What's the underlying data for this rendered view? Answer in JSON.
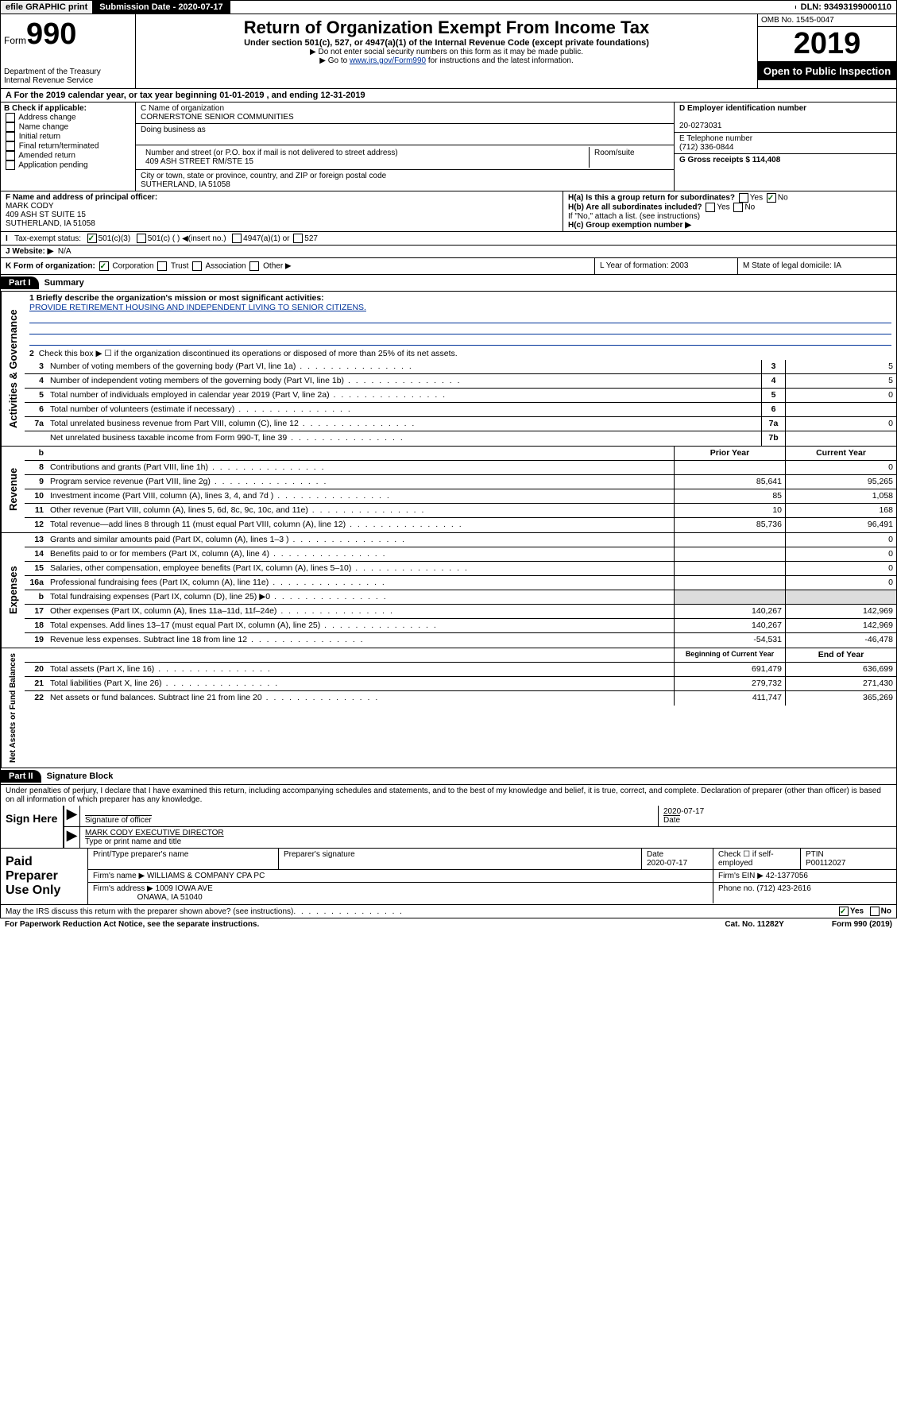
{
  "topbar": {
    "efile": "efile GRAPHIC print",
    "sub_label": "Submission Date - 2020-07-17",
    "dln": "DLN: 93493199000110"
  },
  "header": {
    "form_prefix": "Form",
    "form_number": "990",
    "dept": "Department of the Treasury\nInternal Revenue Service",
    "title": "Return of Organization Exempt From Income Tax",
    "subtitle": "Under section 501(c), 527, or 4947(a)(1) of the Internal Revenue Code (except private foundations)",
    "instr1": "▶ Do not enter social security numbers on this form as it may be made public.",
    "instr2_pre": "▶ Go to ",
    "instr2_link": "www.irs.gov/Form990",
    "instr2_post": " for instructions and the latest information.",
    "omb": "OMB No. 1545-0047",
    "year": "2019",
    "open": "Open to Public Inspection"
  },
  "lineA": "A For the 2019 calendar year, or tax year beginning 01-01-2019   , and ending 12-31-2019",
  "colB": {
    "label": "B Check if applicable:",
    "opts": [
      "Address change",
      "Name change",
      "Initial return",
      "Final return/terminated",
      "Amended return",
      "Application pending"
    ]
  },
  "colC": {
    "name_label": "C Name of organization",
    "name": "CORNERSTONE SENIOR COMMUNITIES",
    "dba_label": "Doing business as",
    "addr_label": "Number and street (or P.O. box if mail is not delivered to street address)",
    "room_label": "Room/suite",
    "addr": "409 ASH STREET RM/STE 15",
    "city_label": "City or town, state or province, country, and ZIP or foreign postal code",
    "city": "SUTHERLAND, IA  51058"
  },
  "colD": {
    "ein_label": "D Employer identification number",
    "ein": "20-0273031",
    "phone_label": "E Telephone number",
    "phone": "(712) 336-0844",
    "gross_label": "G Gross receipts $ 114,408"
  },
  "rowF": {
    "label": "F  Name and address of principal officer:",
    "name": "MARK CODY",
    "addr": "409 ASH ST SUITE 15",
    "city": "SUTHERLAND, IA  51058"
  },
  "rowH": {
    "ha": "H(a)  Is this a group return for subordinates?",
    "yes": "Yes",
    "no": "No",
    "hb": "H(b)  Are all subordinates included?",
    "hb_note": "If \"No,\" attach a list. (see instructions)",
    "hc": "H(c)  Group exemption number ▶"
  },
  "rowI": {
    "label": "Tax-exempt status:",
    "o1": "501(c)(3)",
    "o2": "501(c) (  ) ◀(insert no.)",
    "o3": "4947(a)(1) or",
    "o4": "527"
  },
  "rowJ": {
    "label": "J    Website: ▶",
    "val": "N/A"
  },
  "rowK": {
    "label": "K Form of organization:",
    "o1": "Corporation",
    "o2": "Trust",
    "o3": "Association",
    "o4": "Other ▶"
  },
  "rowL": {
    "label": "L Year of formation: 2003"
  },
  "rowM": {
    "label": "M State of legal domicile: IA"
  },
  "part1": {
    "num": "Part I",
    "title": "Summary"
  },
  "governance": {
    "label": "Activities & Governance",
    "line1_label": "1  Briefly describe the organization's mission or most significant activities:",
    "line1_val": "PROVIDE RETIREMENT HOUSING AND INDEPENDENT LIVING TO SENIOR CITIZENS.",
    "line2": "Check this box ▶ ☐  if the organization discontinued its operations or disposed of more than 25% of its net assets.",
    "rows": [
      {
        "n": "3",
        "t": "Number of voting members of the governing body (Part VI, line 1a)",
        "b": "3",
        "v": "5"
      },
      {
        "n": "4",
        "t": "Number of independent voting members of the governing body (Part VI, line 1b)",
        "b": "4",
        "v": "5"
      },
      {
        "n": "5",
        "t": "Total number of individuals employed in calendar year 2019 (Part V, line 2a)",
        "b": "5",
        "v": "0"
      },
      {
        "n": "6",
        "t": "Total number of volunteers (estimate if necessary)",
        "b": "6",
        "v": ""
      },
      {
        "n": "7a",
        "t": "Total unrelated business revenue from Part VIII, column (C), line 12",
        "b": "7a",
        "v": "0"
      },
      {
        "n": "",
        "t": "Net unrelated business taxable income from Form 990-T, line 39",
        "b": "7b",
        "v": ""
      }
    ]
  },
  "cols_hdr": {
    "n": "b",
    "prior": "Prior Year",
    "current": "Current Year"
  },
  "revenue": {
    "label": "Revenue",
    "rows": [
      {
        "n": "8",
        "t": "Contributions and grants (Part VIII, line 1h)",
        "p": "",
        "c": "0"
      },
      {
        "n": "9",
        "t": "Program service revenue (Part VIII, line 2g)",
        "p": "85,641",
        "c": "95,265"
      },
      {
        "n": "10",
        "t": "Investment income (Part VIII, column (A), lines 3, 4, and 7d )",
        "p": "85",
        "c": "1,058"
      },
      {
        "n": "11",
        "t": "Other revenue (Part VIII, column (A), lines 5, 6d, 8c, 9c, 10c, and 11e)",
        "p": "10",
        "c": "168"
      },
      {
        "n": "12",
        "t": "Total revenue—add lines 8 through 11 (must equal Part VIII, column (A), line 12)",
        "p": "85,736",
        "c": "96,491"
      }
    ]
  },
  "expenses": {
    "label": "Expenses",
    "rows": [
      {
        "n": "13",
        "t": "Grants and similar amounts paid (Part IX, column (A), lines 1–3 )",
        "p": "",
        "c": "0"
      },
      {
        "n": "14",
        "t": "Benefits paid to or for members (Part IX, column (A), line 4)",
        "p": "",
        "c": "0"
      },
      {
        "n": "15",
        "t": "Salaries, other compensation, employee benefits (Part IX, column (A), lines 5–10)",
        "p": "",
        "c": "0"
      },
      {
        "n": "16a",
        "t": "Professional fundraising fees (Part IX, column (A), line 11e)",
        "p": "",
        "c": "0"
      },
      {
        "n": "b",
        "t": "Total fundraising expenses (Part IX, column (D), line 25) ▶0",
        "p": "SHADE",
        "c": "SHADE"
      },
      {
        "n": "17",
        "t": "Other expenses (Part IX, column (A), lines 11a–11d, 11f–24e)",
        "p": "140,267",
        "c": "142,969"
      },
      {
        "n": "18",
        "t": "Total expenses. Add lines 13–17 (must equal Part IX, column (A), line 25)",
        "p": "140,267",
        "c": "142,969"
      },
      {
        "n": "19",
        "t": "Revenue less expenses. Subtract line 18 from line 12",
        "p": "-54,531",
        "c": "-46,478"
      }
    ]
  },
  "cols_hdr2": {
    "prior": "Beginning of Current Year",
    "current": "End of Year"
  },
  "netassets": {
    "label": "Net Assets or Fund Balances",
    "rows": [
      {
        "n": "20",
        "t": "Total assets (Part X, line 16)",
        "p": "691,479",
        "c": "636,699"
      },
      {
        "n": "21",
        "t": "Total liabilities (Part X, line 26)",
        "p": "279,732",
        "c": "271,430"
      },
      {
        "n": "22",
        "t": "Net assets or fund balances. Subtract line 21 from line 20",
        "p": "411,747",
        "c": "365,269"
      }
    ]
  },
  "part2": {
    "num": "Part II",
    "title": "Signature Block"
  },
  "perjury": "Under penalties of perjury, I declare that I have examined this return, including accompanying schedules and statements, and to the best of my knowledge and belief, it is true, correct, and complete. Declaration of preparer (other than officer) is based on all information of which preparer has any knowledge.",
  "sign": {
    "here": "Sign Here",
    "sig_label": "Signature of officer",
    "date": "2020-07-17",
    "date_label": "Date",
    "name": "MARK CODY EXECUTIVE DIRECTOR",
    "name_label": "Type or print name and title"
  },
  "paid": {
    "label": "Paid Preparer Use Only",
    "h1": "Print/Type preparer's name",
    "h2": "Preparer's signature",
    "h3": "Date",
    "h4": "Check ☐ if self-employed",
    "h5": "PTIN",
    "date": "2020-07-17",
    "ptin": "P00112027",
    "firm_label": "Firm's name    ▶",
    "firm": "WILLIAMS & COMPANY CPA PC",
    "ein_label": "Firm's EIN ▶",
    "ein": "42-1377056",
    "addr_label": "Firm's address ▶",
    "addr1": "1009 IOWA AVE",
    "addr2": "ONAWA, IA  51040",
    "phone_label": "Phone no.",
    "phone": "(712) 423-2616"
  },
  "discuss": {
    "text": "May the IRS discuss this return with the preparer shown above? (see instructions)",
    "yes": "Yes",
    "no": "No"
  },
  "footer": {
    "pra": "For Paperwork Reduction Act Notice, see the separate instructions.",
    "cat": "Cat. No. 11282Y",
    "form": "Form 990 (2019)"
  }
}
